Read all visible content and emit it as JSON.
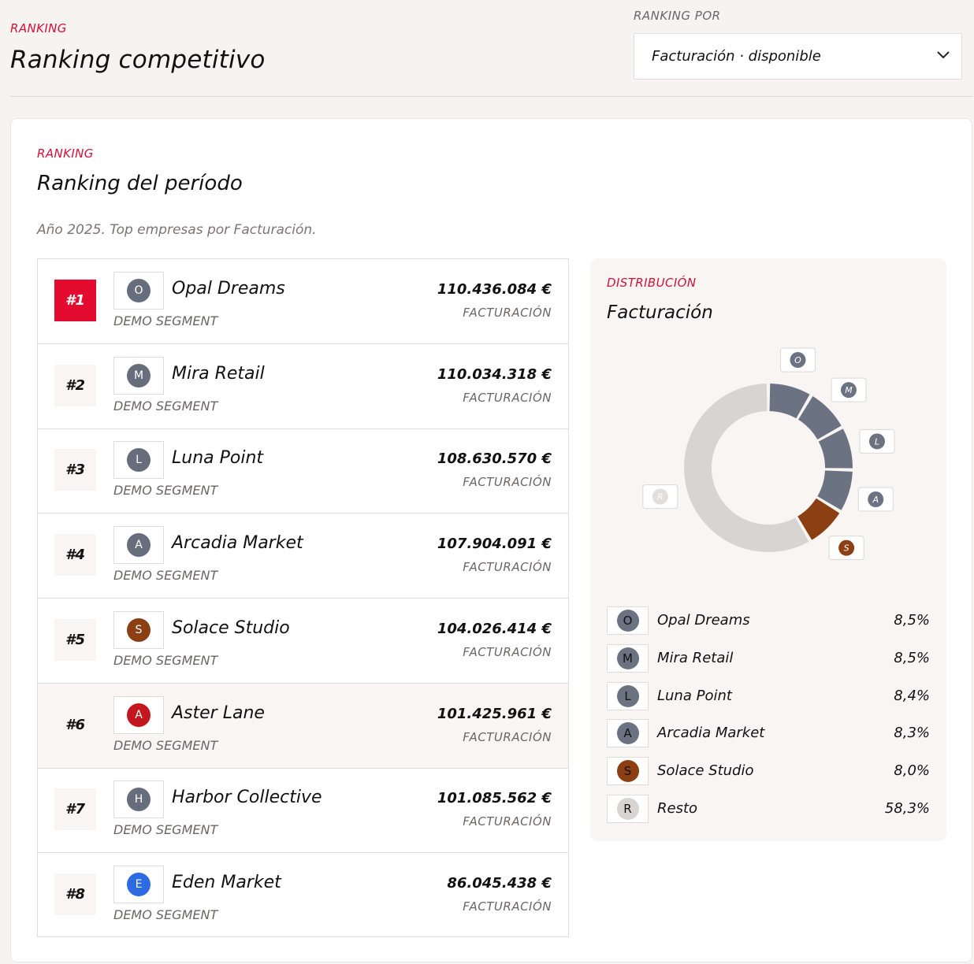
{
  "header": {
    "eyebrow": "RANKING",
    "title": "Ranking competitivo",
    "rank_by_label": "RANKING POR",
    "rank_by_value": "Facturación · disponible"
  },
  "card": {
    "eyebrow": "RANKING",
    "title": "Ranking del período",
    "subtitle": "Año 2025. Top empresas por Facturación."
  },
  "ranking": [
    {
      "rank": "#1",
      "initial": "O",
      "name": "Opal Dreams",
      "segment": "DEMO SEGMENT",
      "amount": "110.436.084 €",
      "metric": "FACTURACIÓN",
      "color": "#666e7c",
      "highlight": false,
      "first": true
    },
    {
      "rank": "#2",
      "initial": "M",
      "name": "Mira Retail",
      "segment": "DEMO SEGMENT",
      "amount": "110.034.318 €",
      "metric": "FACTURACIÓN",
      "color": "#666e7c",
      "highlight": false,
      "first": false
    },
    {
      "rank": "#3",
      "initial": "L",
      "name": "Luna Point",
      "segment": "DEMO SEGMENT",
      "amount": "108.630.570 €",
      "metric": "FACTURACIÓN",
      "color": "#666e7c",
      "highlight": false,
      "first": false
    },
    {
      "rank": "#4",
      "initial": "A",
      "name": "Arcadia Market",
      "segment": "DEMO SEGMENT",
      "amount": "107.904.091 €",
      "metric": "FACTURACIÓN",
      "color": "#666e7c",
      "highlight": false,
      "first": false
    },
    {
      "rank": "#5",
      "initial": "S",
      "name": "Solace Studio",
      "segment": "DEMO SEGMENT",
      "amount": "104.026.414 €",
      "metric": "FACTURACIÓN",
      "color": "#8c3f12",
      "highlight": false,
      "first": false
    },
    {
      "rank": "#6",
      "initial": "A",
      "name": "Aster Lane",
      "segment": "DEMO SEGMENT",
      "amount": "101.425.961 €",
      "metric": "FACTURACIÓN",
      "color": "#c4161f",
      "highlight": true,
      "first": false
    },
    {
      "rank": "#7",
      "initial": "H",
      "name": "Harbor Collective",
      "segment": "DEMO SEGMENT",
      "amount": "101.085.562 €",
      "metric": "FACTURACIÓN",
      "color": "#666e7c",
      "highlight": false,
      "first": false
    },
    {
      "rank": "#8",
      "initial": "E",
      "name": "Eden Market",
      "segment": "DEMO SEGMENT",
      "amount": "86.045.438 €",
      "metric": "FACTURACIÓN",
      "color": "#2d6be3",
      "highlight": false,
      "first": false
    }
  ],
  "distribution": {
    "eyebrow": "DISTRIBUCIÓN",
    "title": "Facturación"
  },
  "chart_data": {
    "type": "pie",
    "title": "Facturación",
    "segments": [
      {
        "name": "Opal Dreams",
        "initial": "O",
        "value": 8.5,
        "label": "8,5%",
        "color": "#6b7382"
      },
      {
        "name": "Mira Retail",
        "initial": "M",
        "value": 8.5,
        "label": "8,5%",
        "color": "#6b7382"
      },
      {
        "name": "Luna Point",
        "initial": "L",
        "value": 8.4,
        "label": "8,4%",
        "color": "#6b7382"
      },
      {
        "name": "Arcadia Market",
        "initial": "A",
        "value": 8.3,
        "label": "8,3%",
        "color": "#6b7382"
      },
      {
        "name": "Solace Studio",
        "initial": "S",
        "value": 8.0,
        "label": "8,0%",
        "color": "#8c3f12"
      },
      {
        "name": "Resto",
        "initial": "R",
        "value": 58.3,
        "label": "58,3%",
        "color": "#d8d4d1"
      }
    ]
  }
}
